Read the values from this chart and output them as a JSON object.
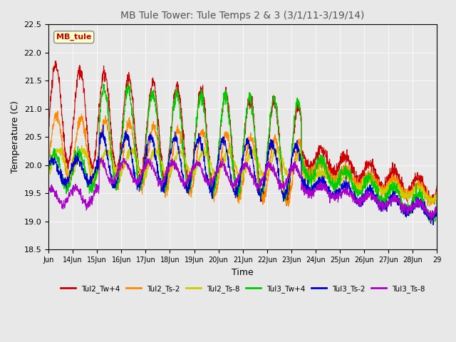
{
  "title": "MB Tule Tower: Tule Temps 2 & 3 (3/1/11-3/19/14)",
  "xlabel": "Time",
  "ylabel": "Temperature (C)",
  "ylim": [
    18.5,
    22.5
  ],
  "xlim": [
    0,
    384
  ],
  "x_tick_positions": [
    0,
    24,
    48,
    72,
    96,
    120,
    144,
    168,
    192,
    216,
    240,
    264,
    288,
    312,
    336,
    360,
    384
  ],
  "x_tick_labels": [
    "Jun",
    "14Jun",
    "15Jun",
    "16Jun",
    "17Jun",
    "18Jun",
    "19Jun",
    "20Jun",
    "21Jun",
    "22Jun",
    "23Jun",
    "24Jun",
    "25Jun",
    "26Jun",
    "27Jun",
    "28Jun",
    "29"
  ],
  "legend_label": "MB_tule",
  "series": [
    {
      "label": "Tul2_Tw+4",
      "color": "#cc0000"
    },
    {
      "label": "Tul2_Ts-2",
      "color": "#ff8800"
    },
    {
      "label": "Tul2_Ts-8",
      "color": "#cccc00"
    },
    {
      "label": "Tul3_Tw+4",
      "color": "#00cc00"
    },
    {
      "label": "Tul3_Ts-2",
      "color": "#0000cc"
    },
    {
      "label": "Tul3_Ts-8",
      "color": "#aa00cc"
    }
  ],
  "bg_color": "#e8e8e8",
  "plot_bg_color": "#e8e8e8"
}
